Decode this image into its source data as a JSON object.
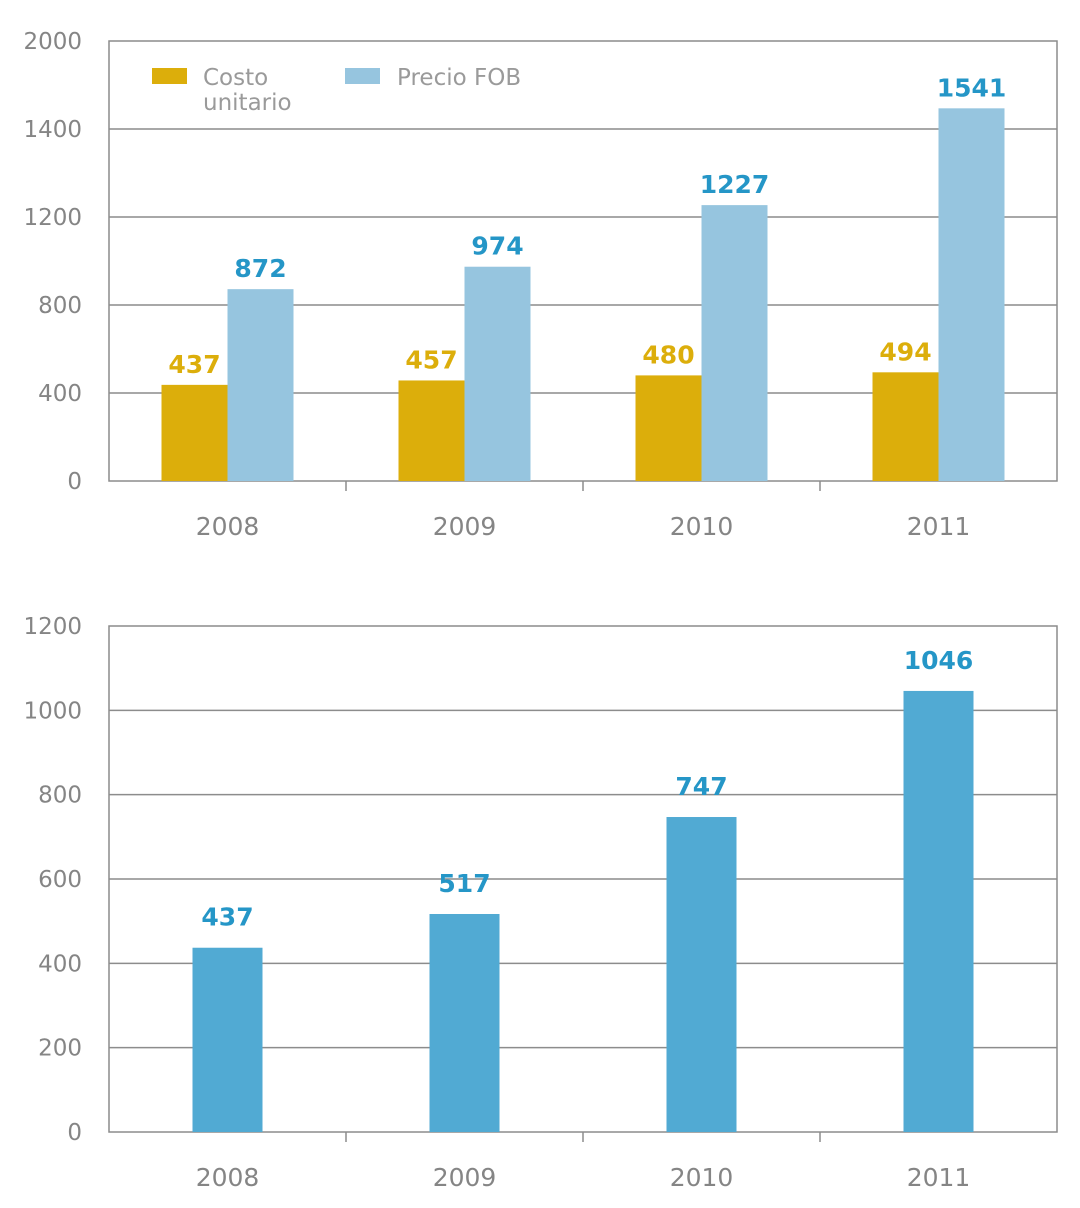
{
  "colors": {
    "costo": "#dcae0b",
    "precio": "#96c5df",
    "precio_label": "#2596c7",
    "bar2": "#51aad3",
    "bar2_label": "#2596c7",
    "grid": "#8c8c8c",
    "text": "#858585"
  },
  "chart_data": [
    {
      "type": "bar",
      "title": "",
      "xlabel": "",
      "ylabel": "",
      "categories": [
        "2008",
        "2009",
        "2010",
        "2011"
      ],
      "series": [
        {
          "name": "Costo unitario",
          "values": [
            437,
            457,
            480,
            494
          ]
        },
        {
          "name": "Precio FOB",
          "values": [
            872,
            974,
            1227,
            1541
          ]
        }
      ],
      "y_tick_labels": [
        "0",
        "400",
        "800",
        "1200",
        "1400",
        "2000"
      ],
      "legend_position": "top-left",
      "grid": true
    },
    {
      "type": "bar",
      "title": "",
      "xlabel": "",
      "ylabel": "",
      "categories": [
        "2008",
        "2009",
        "2010",
        "2011"
      ],
      "series": [
        {
          "values": [
            437,
            517,
            747,
            1046
          ]
        }
      ],
      "y_tick_labels": [
        "0",
        "200",
        "400",
        "600",
        "800",
        "1000",
        "1200"
      ],
      "ylim": [
        0,
        1200
      ],
      "grid": true
    }
  ]
}
